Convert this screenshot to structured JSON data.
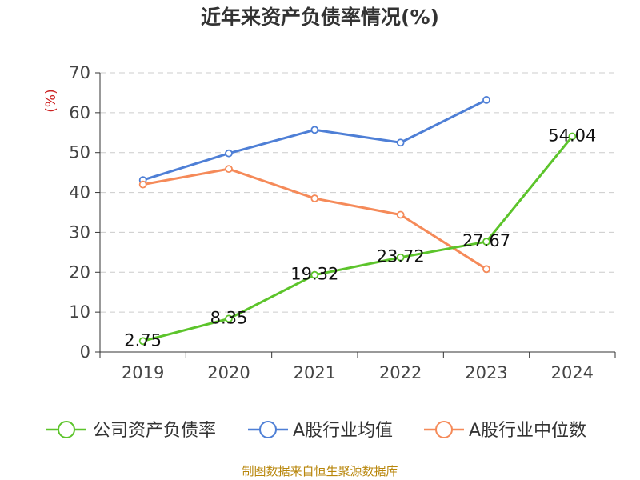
{
  "title": "近年来资产负债率情况(%)",
  "source": "制图数据来自恒生聚源数据库",
  "chart_data": {
    "type": "line",
    "title": "近年来资产负债率情况(%)",
    "ylabel": "(%)",
    "xlabel": "",
    "categories": [
      "2019",
      "2020",
      "2021",
      "2022",
      "2023",
      "2024"
    ],
    "ylim": [
      0,
      70
    ],
    "yticks": [
      0,
      10,
      20,
      30,
      40,
      50,
      60,
      70
    ],
    "grid": true,
    "legend_position": "bottom",
    "series": [
      {
        "name": "公司资产负债率",
        "color": "#5cc42b",
        "values": [
          2.75,
          8.35,
          19.32,
          23.72,
          27.67,
          54.04
        ],
        "labels": [
          "2.75",
          "8.35",
          "19.32",
          "23.72",
          "27.67",
          "54.04"
        ]
      },
      {
        "name": "A股行业均值",
        "color": "#4e7fd6",
        "values": [
          43.1,
          49.8,
          55.7,
          52.5,
          63.2,
          null
        ]
      },
      {
        "name": "A股行业中位数",
        "color": "#f58a59",
        "values": [
          42.0,
          45.9,
          38.5,
          34.4,
          20.8,
          null
        ]
      }
    ]
  }
}
